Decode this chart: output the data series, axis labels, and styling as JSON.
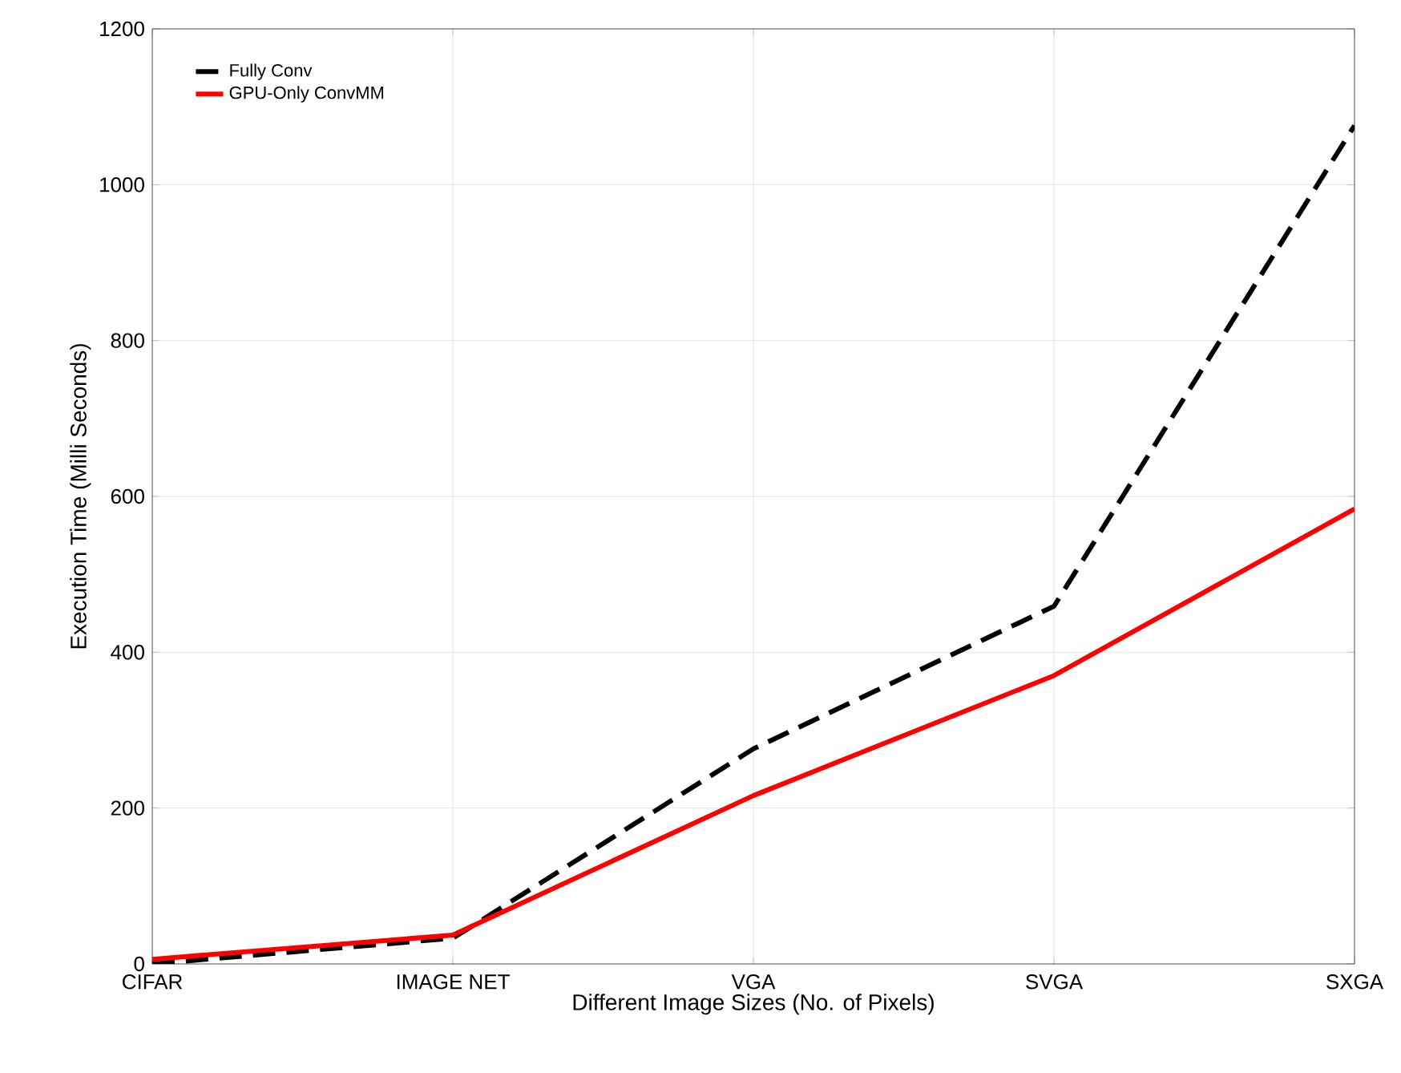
{
  "chart_data": {
    "type": "line",
    "xlabel": "Different Image Sizes (No. of Pixels)",
    "ylabel": "Execution Time (Milli Seconds)",
    "categories": [
      "CIFAR",
      "IMAGE NET",
      "VGA",
      "SVGA",
      "SXGA"
    ],
    "series": [
      {
        "name": "Fully Conv",
        "color": "#000000",
        "line_style": "dashed",
        "values": [
          0,
          33,
          276,
          459,
          1076
        ]
      },
      {
        "name": "GPU-Only ConvMM",
        "color": "#ff0000",
        "line_style": "solid",
        "values": [
          6,
          37,
          216,
          370,
          584
        ]
      }
    ],
    "ylim": [
      0,
      1200
    ],
    "yticks": [
      0,
      200,
      400,
      600,
      800,
      1000,
      1200
    ],
    "grid": true,
    "legend": "top left",
    "marker": "none"
  }
}
